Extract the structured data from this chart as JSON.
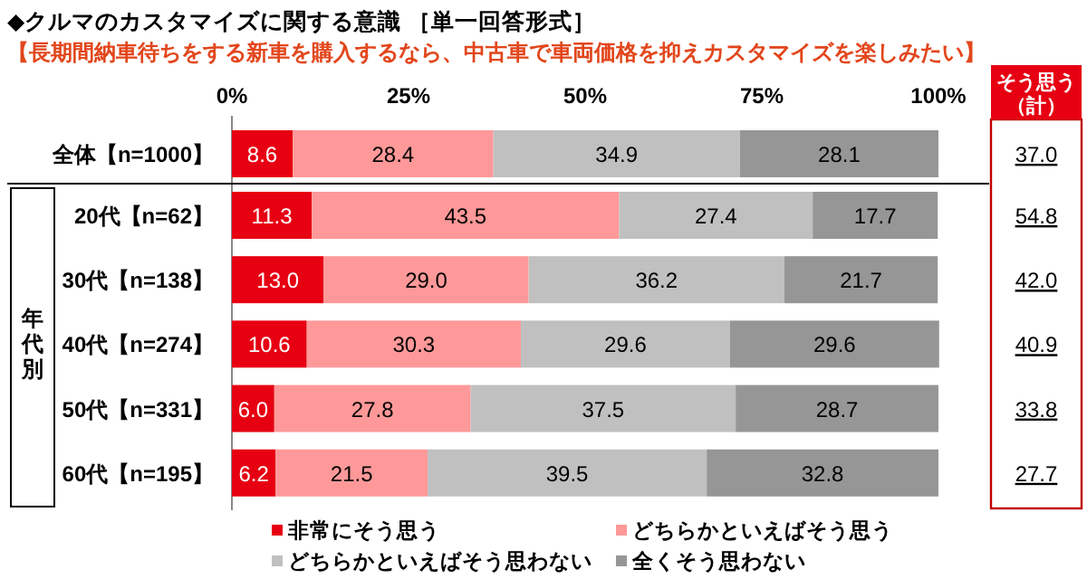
{
  "chart_data": [
    {
      "type": "bar",
      "orientation": "horizontal",
      "stacked": true,
      "title": "◆クルマのカスタマイズに関する意識 ［単一回答形式］",
      "subtitle": "【長期間納車待ちをする新車を購入するなら、中古車で車両価格を抑えカスタマイズを楽しみたい】",
      "categories": [
        "全体【n=1000】",
        "20代【n=62】",
        "30代【n=138】",
        "40代【n=274】",
        "50代【n=331】",
        "60代【n=195】"
      ],
      "series": [
        {
          "name": "非常にそう思う",
          "color": "#e60012",
          "values": [
            8.6,
            11.3,
            13.0,
            10.6,
            6.0,
            6.2
          ],
          "value_labels": [
            "8.6",
            "11.3",
            "13.0",
            "10.6",
            "6.0",
            "6.2"
          ]
        },
        {
          "name": "どちらかといえばそう思う",
          "color": "#ff9999",
          "values": [
            28.4,
            43.5,
            29.0,
            30.3,
            27.8,
            21.5
          ],
          "value_labels": [
            "28.4",
            "43.5",
            "29.0",
            "30.3",
            "27.8",
            "21.5"
          ]
        },
        {
          "name": "どちらかといえばそう思わない",
          "color": "#c0c0c0",
          "values": [
            34.9,
            27.4,
            36.2,
            29.6,
            37.5,
            39.5
          ],
          "value_labels": [
            "34.9",
            "27.4",
            "36.2",
            "29.6",
            "37.5",
            "39.5"
          ]
        },
        {
          "name": "全くそう思わない",
          "color": "#969696",
          "values": [
            28.1,
            17.7,
            21.7,
            29.6,
            28.7,
            32.8
          ],
          "value_labels": [
            "28.1",
            "17.7",
            "21.7",
            "29.6",
            "28.7",
            "32.8"
          ]
        }
      ],
      "xlim": [
        0,
        100
      ],
      "xticks": [
        {
          "value": 0,
          "label": "0%"
        },
        {
          "value": 25,
          "label": "25%"
        },
        {
          "value": 50,
          "label": "50%"
        },
        {
          "value": 75,
          "label": "75%"
        },
        {
          "value": 100,
          "label": "100%"
        }
      ],
      "annotations": [
        "年代別"
      ],
      "legend": "bottom"
    },
    {
      "type": "other",
      "title": "そう思う（計）",
      "annotations": [
        "37.0",
        "54.8",
        "42.0",
        "40.9",
        "33.8",
        "27.7"
      ]
    }
  ]
}
